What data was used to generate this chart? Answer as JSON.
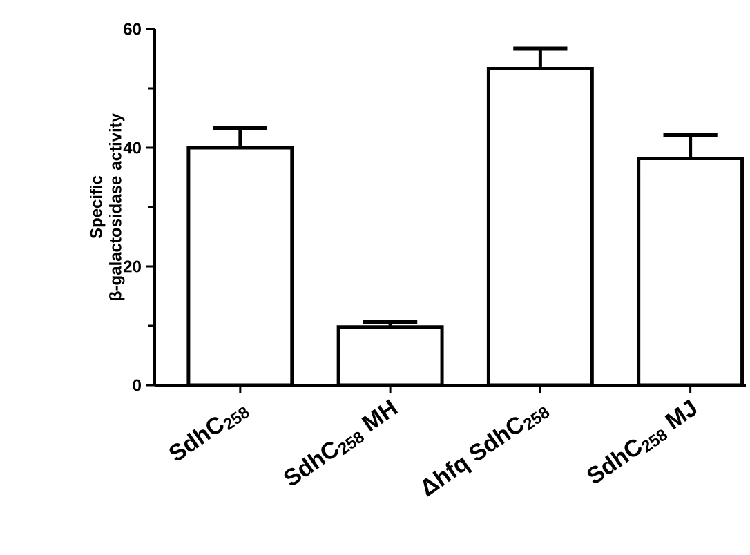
{
  "chart_data": {
    "type": "bar",
    "ylabel": "Specific β-galactosidase activity",
    "categories": [
      "SdhC$_{258}$",
      "SdhC$_{258}$ MH",
      "Δhfq SdhC$_{258}$",
      "SdhC$_{258}$ MJ"
    ],
    "values": [
      40,
      9.8,
      53.3,
      38.2
    ],
    "errors": [
      [
        40,
        43.3
      ],
      [
        9.8,
        10.7
      ],
      [
        53.3,
        56.7
      ],
      [
        38.2,
        42.2
      ]
    ],
    "color": "#ffffff",
    "ylim": [
      0,
      60
    ],
    "yticks": [
      0,
      20,
      40,
      60
    ],
    "grid": false
  }
}
